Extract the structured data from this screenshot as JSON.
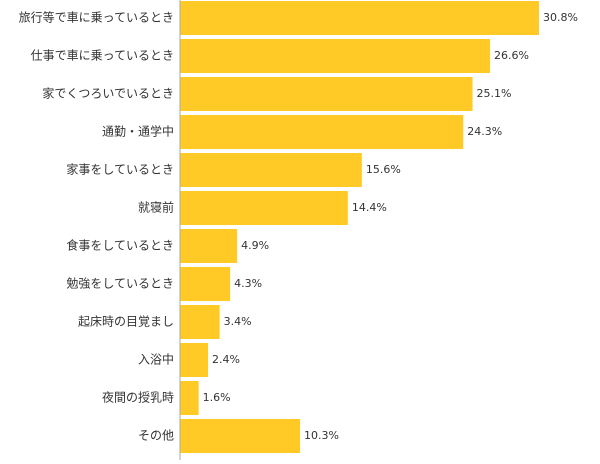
{
  "chart_data": {
    "type": "bar",
    "orientation": "horizontal",
    "categories": [
      "旅行等で車に乗っているとき",
      "仕事で車に乗っているとき",
      "家でくつろいでいるとき",
      "通勤・通学中",
      "家事をしているとき",
      "就寝前",
      "食事をしているとき",
      "勉強をしているとき",
      "起床時の目覚まし",
      "入浴中",
      "夜間の授乳時",
      "その他"
    ],
    "values": [
      30.8,
      26.6,
      25.1,
      24.3,
      15.6,
      14.4,
      4.9,
      4.3,
      3.4,
      2.4,
      1.6,
      10.3
    ],
    "value_labels": [
      "30.8%",
      "26.6%",
      "25.1%",
      "24.3%",
      "15.6%",
      "14.4%",
      "4.9%",
      "4.3%",
      "3.4%",
      "2.4%",
      "1.6%",
      "10.3%"
    ],
    "color": "#ffc926"
  }
}
